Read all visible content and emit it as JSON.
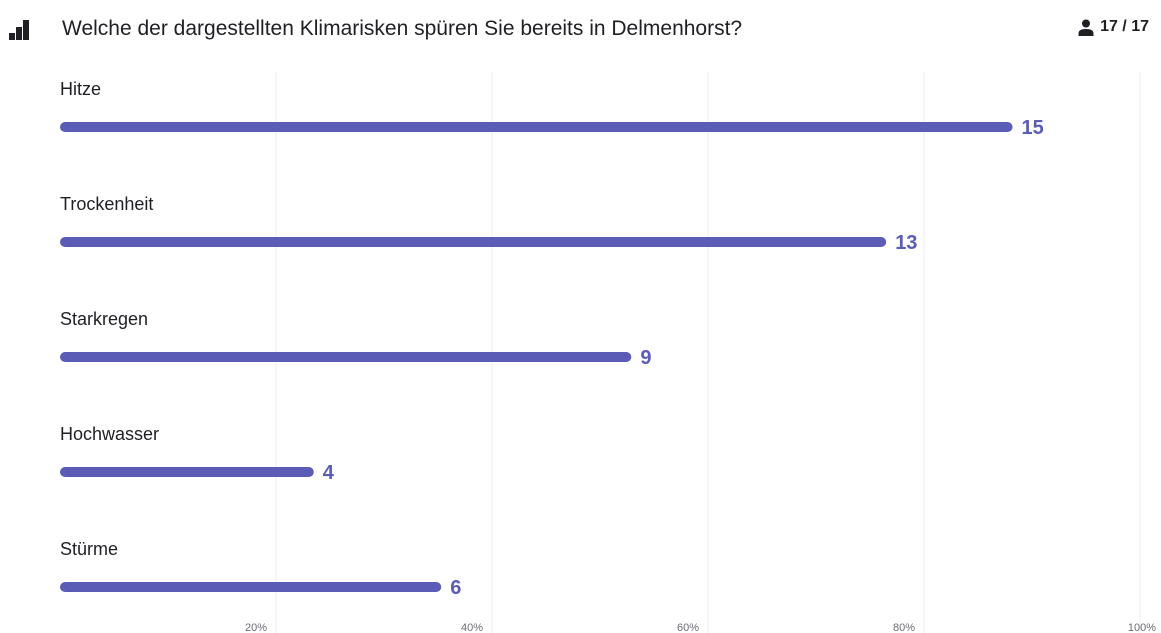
{
  "header": {
    "question": "Welche der dargestellten Klimarisken spüren Sie bereits in Delmenhorst?",
    "responses": "17 / 17"
  },
  "colors": {
    "bar": "#5b5cb5",
    "value_text": "#5b5cb5",
    "grid": "#ededf0"
  },
  "icons": {
    "chart": "bar-chart-icon",
    "person": "person-icon"
  },
  "chart_data": {
    "type": "bar",
    "orientation": "horizontal",
    "categories": [
      "Hitze",
      "Trockenheit",
      "Starkregen",
      "Hochwasser",
      "Stürme"
    ],
    "values": [
      15,
      13,
      9,
      4,
      6
    ],
    "percent_of_respondents": [
      88.2,
      76.5,
      52.9,
      23.5,
      35.3
    ],
    "total": 17,
    "x_ticks": [
      "20%",
      "40%",
      "60%",
      "80%",
      "100%"
    ],
    "xlim": [
      0,
      100
    ],
    "grid": true
  }
}
